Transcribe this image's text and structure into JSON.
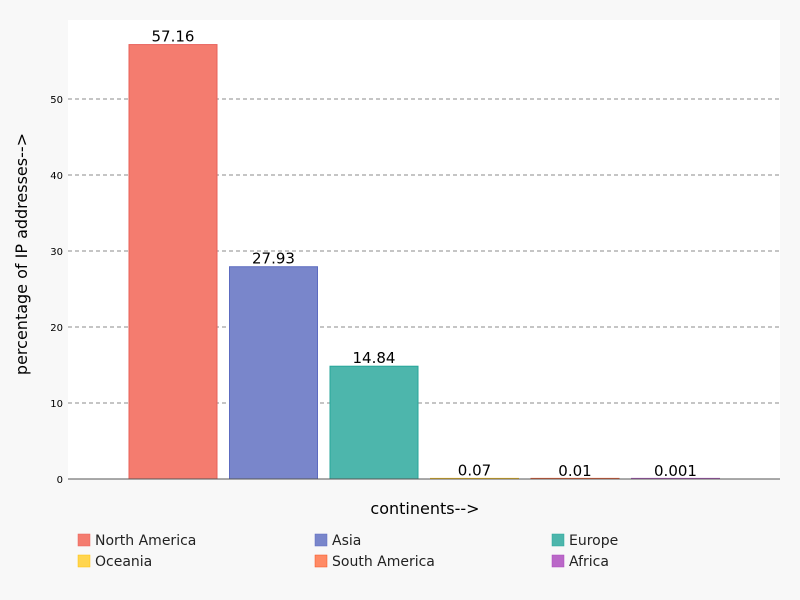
{
  "chart_data": {
    "type": "bar",
    "title": "",
    "xlabel": "continents-->",
    "ylabel": "percentage of IP addresses-->",
    "ylim": [
      0,
      60
    ],
    "yticks": [
      0,
      10,
      20,
      30,
      40,
      50
    ],
    "grid": true,
    "legend_position": "bottom",
    "categories": [
      "North America",
      "Asia",
      "Europe",
      "Oceania",
      "South America",
      "Africa"
    ],
    "values": [
      57.16,
      27.93,
      14.84,
      0.07,
      0.01,
      0.001
    ],
    "value_labels": [
      "57.16",
      "27.93",
      "14.84",
      "0.07",
      "0.01",
      "0.001"
    ],
    "colors": [
      "#f47c6f",
      "#7986cb",
      "#4db6ac",
      "#ffd54f",
      "#ff8a65",
      "#ba68c8"
    ],
    "edge_colors": [
      "#e8605a",
      "#5c6bc0",
      "#26a69a",
      "#ffc107",
      "#f4511e",
      "#ab47bc"
    ]
  }
}
